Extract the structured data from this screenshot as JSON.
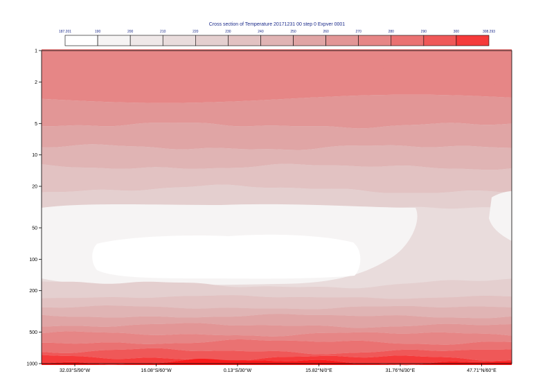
{
  "chart_data": {
    "type": "heatmap",
    "title": "Cross section of Temperature 20171231 00 step 0 Expver 0001",
    "colorbar": {
      "labels": [
        "187.201",
        "190",
        "200",
        "210",
        "220",
        "230",
        "240",
        "250",
        "260",
        "270",
        "280",
        "290",
        "300",
        "308.293"
      ],
      "colors": [
        "#ffffff",
        "#f6f4f4",
        "#efe8e8",
        "#e9dcdc",
        "#e4cfcf",
        "#e2c2c2",
        "#e0b4b4",
        "#e0a5a5",
        "#e29696",
        "#e68686",
        "#ea7272",
        "#ef5858",
        "#f53a3a",
        "#fa1a1a"
      ]
    },
    "x_ticks": [
      "32.03°S/90°W",
      "16.08°S/60°W",
      "0.13°S/30°W",
      "15.82°N/0°E",
      "31.76°N/30°E",
      "47.71°N/60°E"
    ],
    "y_ticks": [
      "1",
      "2",
      "5",
      "10",
      "20",
      "50",
      "100",
      "200",
      "500",
      "1000"
    ],
    "y_scale": "log",
    "y_range": [
      1,
      1000
    ],
    "y_inverted": true,
    "x_range": [
      "32.03°S/90°W",
      "47.71°N/60°E"
    ],
    "grid": false
  }
}
